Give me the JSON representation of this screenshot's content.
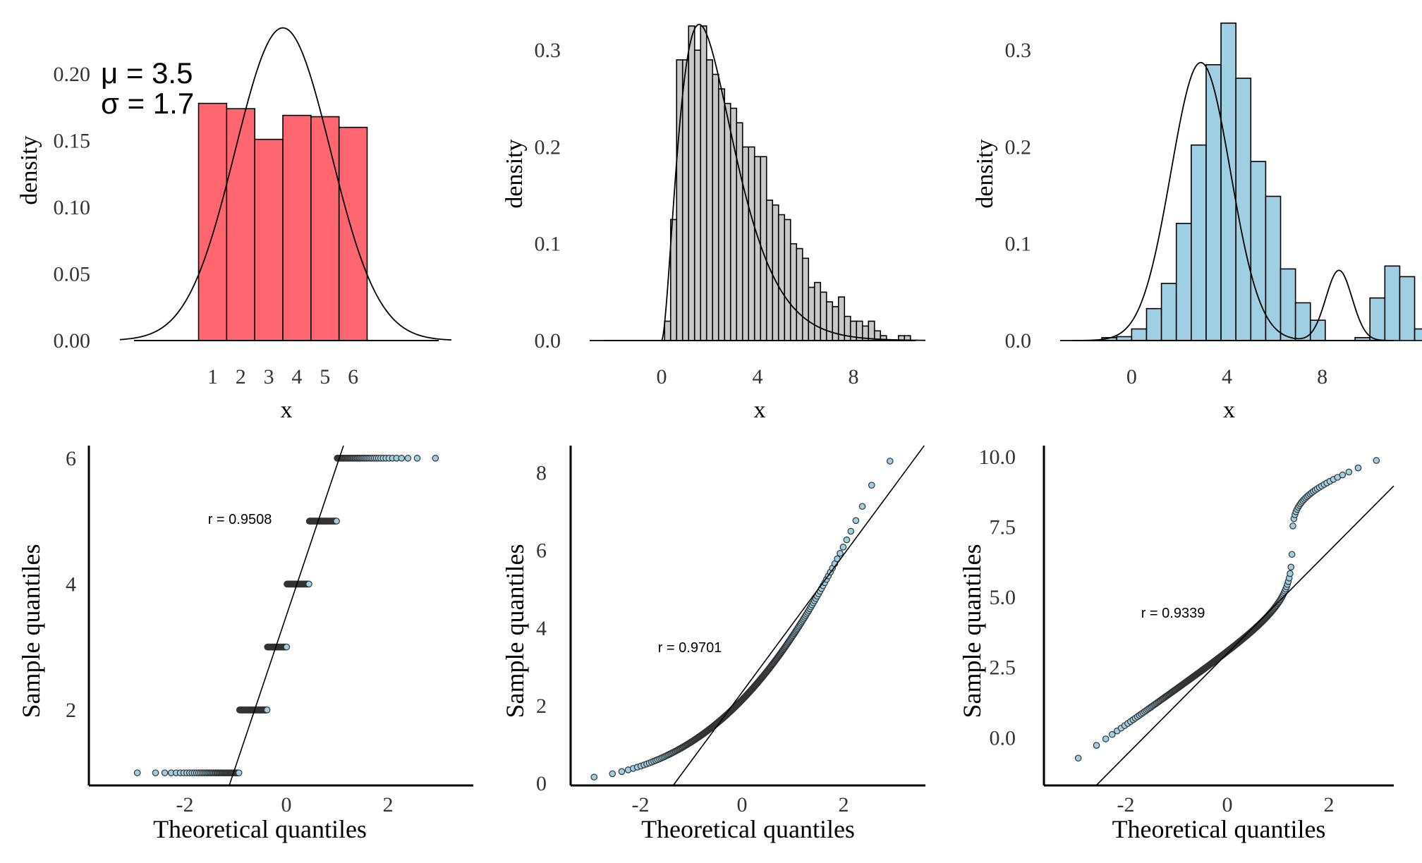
{
  "colors": {
    "uniform": "#FF6670",
    "skewed": "#C8C8C8",
    "bimodal": "#9ECFE2",
    "qq_point_fill": "#9ECFE2",
    "qq_point_edge": "#333333",
    "line": "#000000"
  },
  "chart_data": [
    {
      "id": "hist_uniform",
      "type": "bar",
      "xlabel": "x",
      "ylabel": "density",
      "xlim": [
        -2.3,
        9.5
      ],
      "ylim": [
        0,
        0.245
      ],
      "xticks": [
        1,
        2,
        3,
        4,
        5,
        6
      ],
      "yticks": [
        0.0,
        0.05,
        0.1,
        0.15,
        0.2
      ],
      "ytick_labels": [
        "0.00",
        "0.05",
        "0.10",
        "0.15",
        "0.20"
      ],
      "bin_width": 1.0,
      "categories": [
        1,
        2,
        3,
        4,
        5,
        6
      ],
      "values": [
        0.178,
        0.174,
        0.151,
        0.169,
        0.168,
        0.16
      ],
      "curve": {
        "type": "normal",
        "mean": 3.5,
        "sd": 1.7,
        "scale": 1.0
      },
      "annotations": [
        {
          "text": "μ = 3.5"
        },
        {
          "text": "σ = 1.7"
        }
      ]
    },
    {
      "id": "hist_skewed",
      "type": "bar",
      "xlabel": "x",
      "ylabel": "density",
      "xlim": [
        -3.0,
        11.0
      ],
      "ylim": [
        0,
        0.33
      ],
      "xticks": [
        0,
        4,
        8
      ],
      "yticks": [
        0.0,
        0.1,
        0.2,
        0.3
      ],
      "ytick_labels": [
        "0.0",
        "0.1",
        "0.2",
        "0.3"
      ],
      "bin_width": 0.25,
      "bin_start": 0.125,
      "values": [
        0.02,
        0.125,
        0.29,
        0.29,
        0.325,
        0.3,
        0.325,
        0.29,
        0.275,
        0.26,
        0.245,
        0.24,
        0.225,
        0.2,
        0.2,
        0.19,
        0.19,
        0.145,
        0.14,
        0.13,
        0.125,
        0.1,
        0.095,
        0.085,
        0.055,
        0.06,
        0.05,
        0.04,
        0.035,
        0.045,
        0.025,
        0.02,
        0.02,
        0.015,
        0.02,
        0.01,
        0.005,
        0.0,
        0.0,
        0.005,
        0.005
      ],
      "curve": {
        "type": "gamma",
        "shape": 2.8,
        "rate": 1.15,
        "scale": 1.0
      }
    },
    {
      "id": "hist_bimodal",
      "type": "bar",
      "xlabel": "x",
      "ylabel": "density",
      "xlim": [
        -3.0,
        11.0
      ],
      "ylim": [
        0,
        0.33
      ],
      "xticks": [
        0,
        4,
        8
      ],
      "yticks": [
        0.0,
        0.1,
        0.2,
        0.3
      ],
      "ytick_labels": [
        "0.0",
        "0.1",
        "0.2",
        "0.3"
      ],
      "bin_width": 0.625,
      "bin_start": -1.25,
      "values": [
        0.003,
        0.004,
        0.012,
        0.033,
        0.059,
        0.121,
        0.202,
        0.285,
        0.328,
        0.271,
        0.185,
        0.149,
        0.074,
        0.039,
        0.021,
        0.0,
        0.0,
        0.003,
        0.044,
        0.077,
        0.066,
        0.012
      ],
      "curve": {
        "type": "mixture",
        "components": [
          {
            "weight": 0.9,
            "mean": 2.9,
            "sd": 1.25
          },
          {
            "weight": 0.1,
            "mean": 8.7,
            "sd": 0.55
          }
        ]
      }
    },
    {
      "id": "qq_uniform",
      "type": "scatter",
      "xlabel": "Theoretical quantiles",
      "ylabel": "Sample quantiles",
      "xlim": [
        -3.5,
        3.5
      ],
      "ylim": [
        0.8,
        6.2
      ],
      "xticks": [
        -2,
        0,
        2
      ],
      "yticks": [
        2,
        4,
        6
      ],
      "ytick_labels": [
        "2",
        "4",
        "6"
      ],
      "r_label": "r = 0.9508",
      "qq": {
        "kind": "discrete",
        "levels": [
          1,
          2,
          3,
          4,
          5,
          6
        ],
        "probs": [
          0.178,
          0.174,
          0.151,
          0.169,
          0.168,
          0.16
        ],
        "n": 300
      },
      "ref_line": {
        "slope": 2.4,
        "intercept": 3.5
      }
    },
    {
      "id": "qq_skewed",
      "type": "scatter",
      "xlabel": "Theoretical quantiles",
      "ylabel": "Sample quantiles",
      "xlim": [
        -3.5,
        3.5
      ],
      "ylim": [
        -0.05,
        8.7
      ],
      "xticks": [
        -2,
        0,
        2
      ],
      "yticks": [
        0,
        2,
        4,
        6,
        8
      ],
      "ytick_labels": [
        "0",
        "2",
        "4",
        "6",
        "8"
      ],
      "r_label": "r = 0.9701",
      "qq": {
        "kind": "gamma",
        "shape": 2.8,
        "rate": 1.15,
        "n": 280,
        "max_point": 8.3
      },
      "ref_line": {
        "slope": 1.77,
        "intercept": 2.35
      }
    },
    {
      "id": "qq_bimodal",
      "type": "scatter",
      "xlabel": "Theoretical quantiles",
      "ylabel": "Sample quantiles",
      "xlim": [
        -3.5,
        3.5
      ],
      "ylim": [
        -1.7,
        10.4
      ],
      "xticks": [
        -2,
        0,
        2
      ],
      "yticks": [
        0.0,
        2.5,
        5.0,
        7.5,
        10.0
      ],
      "ytick_labels": [
        "0.0",
        "2.5",
        "5.0",
        "7.5",
        "10.0"
      ],
      "r_label": "r = 0.9339",
      "qq": {
        "kind": "mixture",
        "components": [
          {
            "weight": 0.9,
            "mean": 2.9,
            "sd": 1.25
          },
          {
            "weight": 0.1,
            "mean": 8.7,
            "sd": 0.55
          }
        ],
        "n": 300
      },
      "ref_line": {
        "slope": 1.82,
        "intercept": 3.0
      }
    }
  ]
}
